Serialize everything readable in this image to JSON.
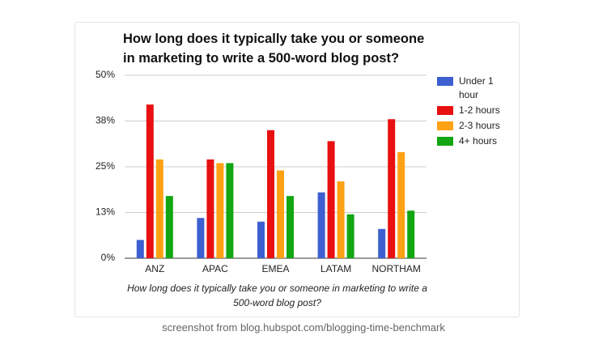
{
  "chart_data": {
    "type": "bar",
    "title": "How long does it typically take you or someone in marketing to write a 500-word blog post?",
    "x_label": "How long does it typically take you or someone in marketing to write a 500-word blog post?",
    "categories": [
      "ANZ",
      "APAC",
      "EMEA",
      "LATAM",
      "NORTHAM"
    ],
    "series": [
      {
        "name": "Under 1 hour",
        "color": "#3d5fd0",
        "values": [
          5,
          11,
          10,
          18,
          8
        ]
      },
      {
        "name": "1-2 hours",
        "color": "#e81010",
        "values": [
          42,
          27,
          35,
          32,
          38
        ]
      },
      {
        "name": "2-3 hours",
        "color": "#ffa114",
        "values": [
          27,
          26,
          24,
          21,
          29
        ]
      },
      {
        "name": "4+ hours",
        "color": "#12a612",
        "values": [
          17,
          26,
          17,
          12,
          13
        ]
      }
    ],
    "ylim": [
      0,
      50
    ],
    "yticks": [
      {
        "value": 0,
        "label": "0%"
      },
      {
        "value": 12.5,
        "label": "13%"
      },
      {
        "value": 25,
        "label": "25%"
      },
      {
        "value": 37.5,
        "label": "38%"
      },
      {
        "value": 50,
        "label": "50%"
      }
    ],
    "grid": true,
    "legend": "right"
  },
  "caption": "screenshot from blog.hubspot.com/blogging-time-benchmark"
}
